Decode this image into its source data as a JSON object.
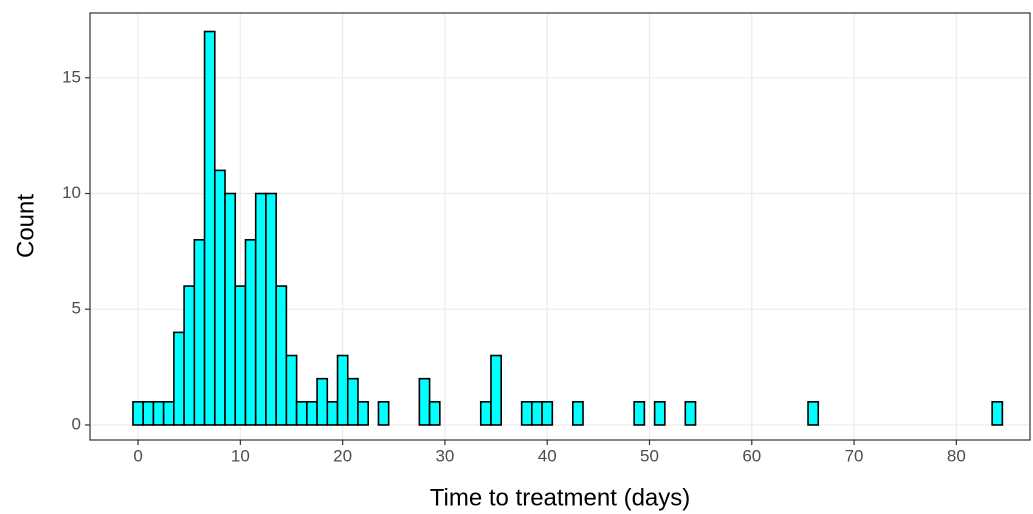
{
  "chart_data": {
    "type": "histogram",
    "x_label": "Time to treatment (days)",
    "y_label": "Count",
    "bins": [
      -0.5,
      0.5,
      1.5,
      2.5,
      3.5,
      4.5,
      5.5,
      6.5,
      7.5,
      8.5,
      9.5,
      10.5,
      11.5,
      12.5,
      13.5,
      14.5,
      15.5,
      16.5,
      17.5,
      18.5,
      19.5,
      20.5,
      21.5,
      22.5,
      23.5,
      24.5,
      25.5,
      26.5,
      27.5,
      28.5,
      29.5,
      30.5,
      31.5,
      32.5,
      33.5,
      34.5,
      35.5,
      36.5,
      37.5,
      38.5,
      39.5,
      40.5,
      41.5,
      42.5,
      43.5,
      44.5,
      45.5,
      46.5,
      47.5,
      48.5,
      49.5,
      50.5,
      51.5,
      52.5,
      53.5,
      54.5,
      55.5,
      56.5,
      57.5,
      58.5,
      59.5,
      60.5,
      61.5,
      62.5,
      63.5,
      64.5,
      65.5,
      66.5,
      67.5,
      68.5,
      69.5,
      70.5,
      71.5,
      72.5,
      73.5,
      74.5,
      75.5,
      76.5,
      77.5,
      78.5,
      79.5,
      80.5,
      81.5,
      82.5,
      83.5,
      84.5
    ],
    "values": [
      1,
      1,
      1,
      1,
      4,
      6,
      8,
      17,
      11,
      10,
      6,
      8,
      10,
      10,
      6,
      3,
      1,
      1,
      2,
      1,
      3,
      2,
      1,
      0,
      1,
      0,
      0,
      0,
      2,
      1,
      0,
      0,
      0,
      0,
      1,
      3,
      0,
      0,
      1,
      1,
      1,
      0,
      0,
      1,
      0,
      0,
      0,
      0,
      0,
      1,
      0,
      1,
      0,
      0,
      1,
      0,
      0,
      0,
      0,
      0,
      0,
      0,
      0,
      0,
      0,
      0,
      1,
      0,
      0,
      0,
      0,
      0,
      0,
      0,
      0,
      0,
      0,
      0,
      0,
      0,
      0,
      0,
      0,
      0,
      1
    ],
    "color": "#00ffff",
    "edgecolor": "#000000",
    "xlim": [
      -4.7,
      87.2
    ],
    "ylim": [
      -0.65,
      17.8
    ],
    "xticks": [
      0,
      10,
      20,
      30,
      40,
      50,
      60,
      70,
      80
    ],
    "yticks": [
      0,
      5,
      10,
      15
    ],
    "grid": true
  }
}
